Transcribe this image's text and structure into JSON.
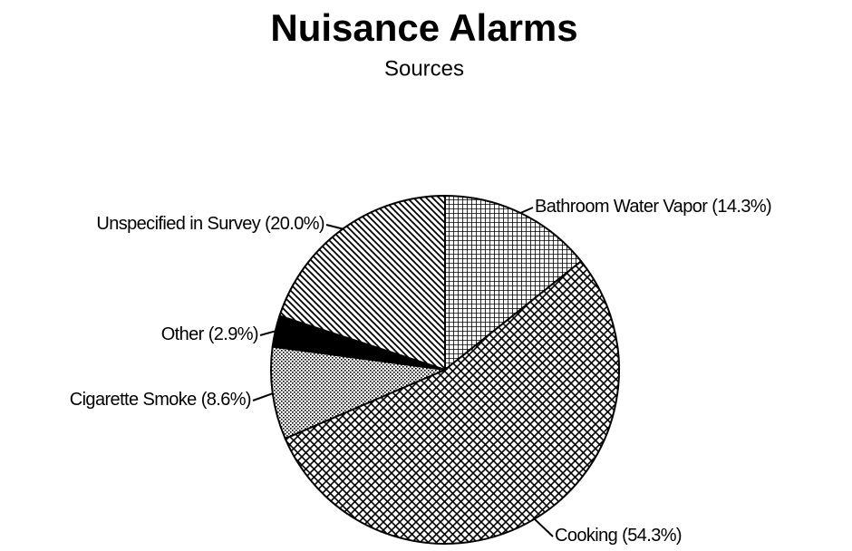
{
  "chart_data": {
    "type": "pie",
    "title": "Nuisance Alarms",
    "subtitle": "Sources",
    "categories": [
      "Bathroom Water Vapor",
      "Cooking",
      "Cigarette Smoke",
      "Other",
      "Unspecified in Survey"
    ],
    "values": [
      14.3,
      54.3,
      8.6,
      2.9,
      20.0
    ],
    "value_labels": [
      "(14.3%)",
      "(54.3%)",
      "(8.6%)",
      "(2.9%)",
      "(20.0%)"
    ]
  }
}
